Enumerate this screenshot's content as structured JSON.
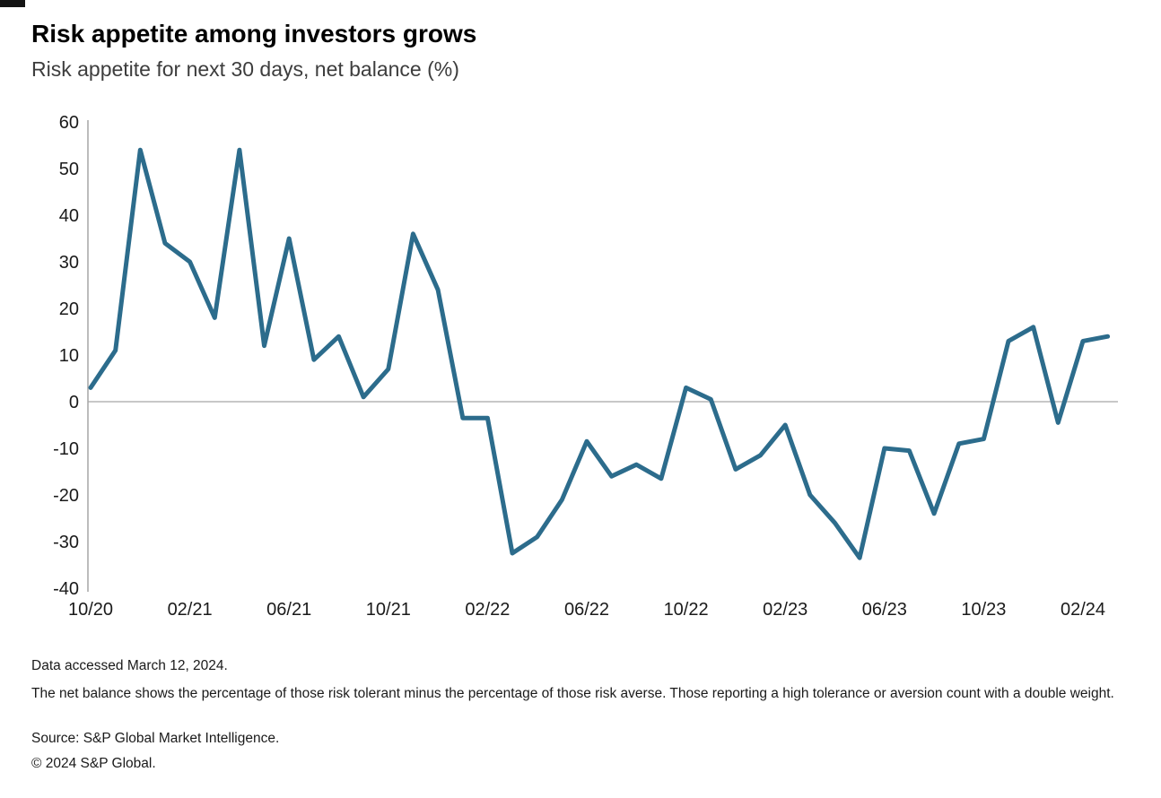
{
  "header": {
    "title": "Risk appetite among investors grows",
    "subtitle": "Risk appetite for next 30 days, net balance (%)"
  },
  "chart_data": {
    "type": "line",
    "title": "Risk appetite among investors grows",
    "subtitle": "Risk appetite for next 30 days, net balance (%)",
    "ylabel": "Net balance (%)",
    "x": [
      "10/20",
      "11/20",
      "12/20",
      "01/21",
      "02/21",
      "03/21",
      "04/21",
      "05/21",
      "06/21",
      "07/21",
      "08/21",
      "09/21",
      "10/21",
      "11/21",
      "12/21",
      "01/22",
      "02/22",
      "03/22",
      "04/22",
      "05/22",
      "06/22",
      "07/22",
      "08/22",
      "09/22",
      "10/22",
      "11/22",
      "12/22",
      "01/23",
      "02/23",
      "03/23",
      "04/23",
      "05/23",
      "06/23",
      "07/23",
      "08/23",
      "09/23",
      "10/23",
      "11/23",
      "12/23",
      "01/24",
      "02/24",
      "03/24"
    ],
    "values": [
      3,
      11,
      54,
      34,
      30,
      18,
      54,
      12,
      35,
      9,
      14,
      1,
      7,
      36,
      24,
      -3.5,
      -3.5,
      -32.5,
      -29,
      -21,
      -8.5,
      -16,
      -13.5,
      -16.5,
      3,
      0.5,
      -14.5,
      -11.5,
      -5,
      -20,
      -26,
      -33.5,
      -10,
      -10.5,
      -24,
      -9,
      -8,
      13,
      16,
      -4.5,
      13,
      14
    ],
    "x_tick_labels": [
      "10/20",
      "02/21",
      "06/21",
      "10/21",
      "02/22",
      "06/22",
      "10/22",
      "02/23",
      "06/23",
      "10/23",
      "02/24"
    ],
    "x_tick_step_months": 4,
    "y_ticks": [
      60,
      50,
      40,
      30,
      20,
      10,
      0,
      -10,
      -20,
      -30,
      -40
    ],
    "ylim": [
      -40,
      60
    ],
    "grid": "horizontal zero line only",
    "legend": "none",
    "line_color": "#2C6C8C"
  },
  "footnotes": {
    "accessed": "Data accessed March 12, 2024.",
    "note": "The net balance shows the percentage of those risk tolerant minus the percentage of those risk averse. Those reporting a high tolerance or aversion count with a double weight.",
    "source": "Source: S&P Global Market Intelligence.",
    "copyright": "© 2024 S&P Global."
  },
  "colors": {
    "line": "#2C6C8C",
    "y_axis": "#a6a6a6",
    "zero_line": "#c8c8c8",
    "tick_text": "#1a1a1a"
  }
}
